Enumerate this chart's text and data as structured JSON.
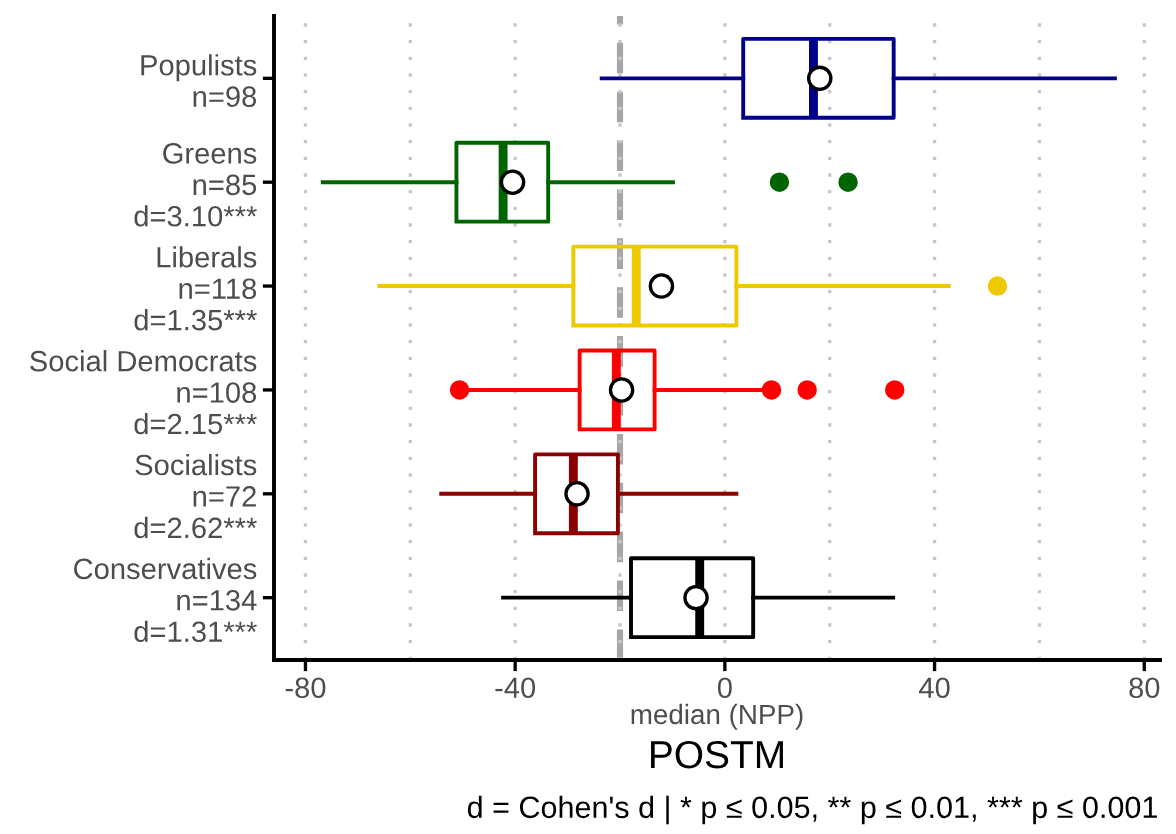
{
  "chart_data": {
    "type": "box",
    "orientation": "horizontal",
    "title": "POSTM",
    "xlabel": "median (NPP)",
    "categories": [
      "Populists\nn=98",
      "Greens\nn=85\nd=3.10***",
      "Liberals\nn=118\nd=1.35***",
      "Social Democrats\nn=108\nd=2.15***",
      "Socialists\nn=72\nd=2.62***",
      "Conservatives\nn=134\nd=1.31***"
    ],
    "colors": [
      "#00008b",
      "#006400",
      "#eec900",
      "#ff0000",
      "#8b0000",
      "#000000"
    ],
    "boxes": [
      {
        "low": -23.5,
        "q1": 3.5,
        "median": 16.9,
        "q3": 32.2,
        "high": 74.4,
        "mean": 18.1
      },
      {
        "low": -76.7,
        "q1": -51.2,
        "median": -42.3,
        "q3": -33.7,
        "high": -9.9,
        "mean": -40.5,
        "outliers": [
          10.4,
          23.5
        ]
      },
      {
        "low": -65.9,
        "q1": -28.9,
        "median": -16.9,
        "q3": 2.2,
        "high": 42.7,
        "mean": -12.1,
        "outliers": [
          52
        ]
      },
      {
        "low": -50.6,
        "q1": -27.7,
        "median": -20.7,
        "q3": -13.4,
        "high": 7.3,
        "mean": -19.7,
        "outliers": [
          -50.6,
          8.9,
          15.7,
          32.4
        ]
      },
      {
        "low": -54.1,
        "q1": -36.2,
        "median": -28.9,
        "q3": -20.4,
        "high": 2.2,
        "mean": -28.2
      },
      {
        "low": -42.3,
        "q1": -17.9,
        "median": -4.8,
        "q3": 5.4,
        "high": 32.1,
        "mean": -5.5
      }
    ],
    "xlim": [
      -86,
      83
    ],
    "xticks": [
      -80,
      {
        "value": -60,
        "label": null
      },
      -40,
      {
        "value": -20,
        "label": null
      },
      0,
      {
        "value": 20,
        "label": null
      },
      40,
      {
        "value": 60,
        "label": null
      },
      80
    ],
    "grid": "x",
    "legend": false,
    "ref_lines": [
      {
        "axis": "x",
        "value": -20,
        "color": "#a6a6a6",
        "line_style": "dashed"
      }
    ],
    "annotations": [
      "d = Cohen's d | * p ≤ 0.05, ** p ≤ 0.01, *** p ≤ 0.001"
    ]
  }
}
